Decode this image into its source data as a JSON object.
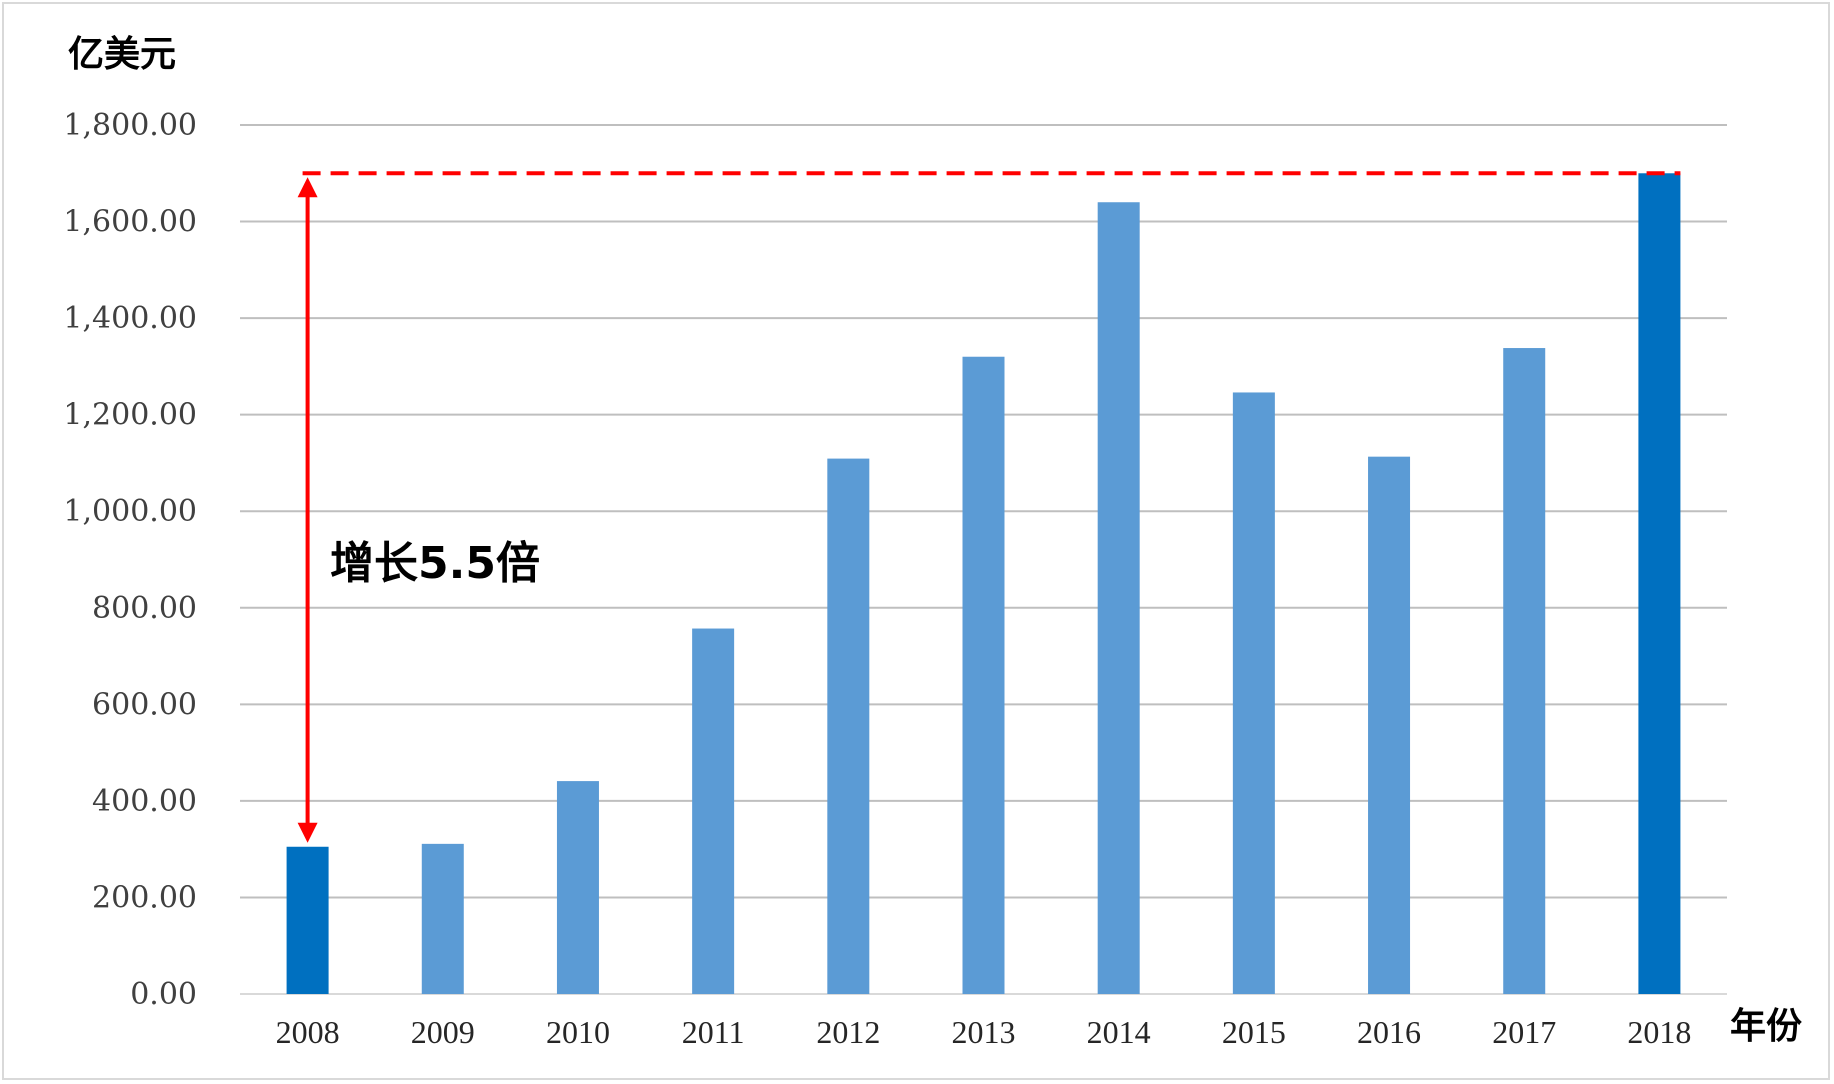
{
  "chart_data": {
    "type": "bar",
    "ylabel": "亿美元",
    "xlabel": "年份",
    "ylim": [
      0,
      1800
    ],
    "y_ticks": [
      "0.00",
      "200.00",
      "400.00",
      "600.00",
      "800.00",
      "1,000.00",
      "1,200.00",
      "1,400.00",
      "1,600.00",
      "1,800.00"
    ],
    "y_tick_values": [
      0,
      200,
      400,
      600,
      800,
      1000,
      1200,
      1400,
      1600,
      1800
    ],
    "categories": [
      "2008",
      "2009",
      "2010",
      "2011",
      "2012",
      "2013",
      "2014",
      "2015",
      "2016",
      "2017",
      "2018"
    ],
    "values": [
      305,
      311,
      441,
      757,
      1109,
      1320,
      1640,
      1246,
      1113,
      1338,
      1700
    ],
    "highlighted_categories": [
      "2008",
      "2018"
    ],
    "grid": true,
    "legend": "none",
    "annotation": {
      "text": "增长5.5倍",
      "reference_value": 1700,
      "arrow_from_category": "2008",
      "arrow_from_value": 305,
      "arrow_to_value": 1700
    }
  },
  "colors": {
    "bar": "#5b9bd5",
    "bar_highlight": "#0070c0",
    "annotation": "#ff0000"
  }
}
